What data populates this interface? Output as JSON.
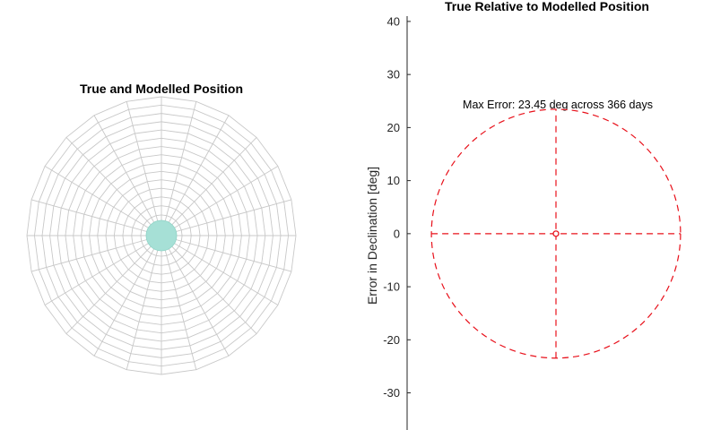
{
  "chart_data": [
    {
      "type": "polar-surface",
      "title": "True and Modelled Position",
      "rings": 16,
      "spokes": 24,
      "grid_color": "#c8c8c8",
      "center_patch_color": "#a6e0d6"
    },
    {
      "type": "line",
      "title": "True Relative to Modelled Position",
      "ylabel": "Error in Declination [deg]",
      "ylim": [
        -37,
        41
      ],
      "xlim": [
        -23.45,
        23.45
      ],
      "yticks": [
        40,
        30,
        20,
        10,
        0,
        -10,
        -20,
        -30
      ],
      "annotation": "Max Error: 23.45 deg across 366 days",
      "line_color": "#e8101a",
      "circle_radius": 23.45,
      "series": [
        {
          "style": "dashed",
          "kind": "circle",
          "center": [
            0,
            0
          ],
          "radius": 23.45
        },
        {
          "style": "dashed",
          "kind": "segment",
          "x": [
            -23.45,
            23.45
          ],
          "y": [
            0,
            0
          ]
        },
        {
          "style": "dashed",
          "kind": "segment",
          "x": [
            0,
            0
          ],
          "y": [
            -23.45,
            23.45
          ]
        },
        {
          "style": "marker",
          "kind": "point",
          "x": [
            0
          ],
          "y": [
            0
          ]
        }
      ]
    }
  ]
}
